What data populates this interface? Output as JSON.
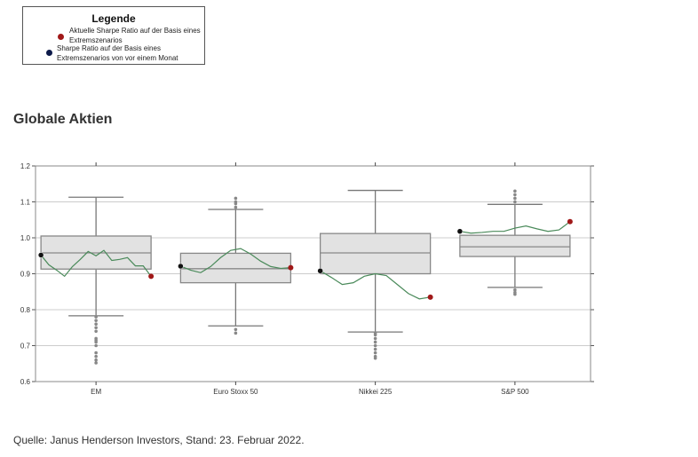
{
  "legend": {
    "title": "Legende",
    "items": [
      {
        "label": "Aktuelle Sharpe Ratio auf der Basis eines Extremszenarios",
        "color": "#a01818"
      },
      {
        "label": "Sharpe Ratio auf der Basis eines Extremszenarios von vor einem Monat",
        "color": "#0d1a4a"
      }
    ]
  },
  "title": "Globale Aktien",
  "source": "Quelle: Janus Henderson Investors, Stand: 23. Februar 2022.",
  "chart_data": {
    "type": "box",
    "ylim": [
      0.6,
      1.2
    ],
    "yticks": [
      "0.6",
      "0.7",
      "0.8",
      "0.9",
      "1.0",
      "1.1",
      "1.2"
    ],
    "grid": true,
    "categories": [
      "EM",
      "Euro Stoxx 50",
      "Nikkei 225",
      "S&P 500"
    ],
    "boxes": [
      {
        "name": "EM",
        "whislo": 0.783,
        "q1": 0.913,
        "med": 0.958,
        "q3": 1.005,
        "whishi": 1.113,
        "outliers": [
          0.78,
          0.77,
          0.76,
          0.75,
          0.74,
          0.72,
          0.715,
          0.71,
          0.7,
          0.68,
          0.67,
          0.66,
          0.652
        ],
        "current": 0.893,
        "previous": 0.952,
        "path": [
          0.952,
          0.925,
          0.91,
          0.893,
          0.92,
          0.94,
          0.962,
          0.95,
          0.965,
          0.937,
          0.94,
          0.945,
          0.922,
          0.922,
          0.893
        ]
      },
      {
        "name": "Euro Stoxx 50",
        "whislo": 0.755,
        "q1": 0.875,
        "med": 0.914,
        "q3": 0.957,
        "whishi": 1.079,
        "outliers": [
          0.745,
          0.735,
          1.085,
          1.095,
          1.1,
          1.11
        ],
        "current": 0.917,
        "previous": 0.921,
        "path": [
          0.921,
          0.91,
          0.903,
          0.92,
          0.945,
          0.965,
          0.97,
          0.955,
          0.935,
          0.92,
          0.915,
          0.917
        ]
      },
      {
        "name": "Nikkei 225",
        "whislo": 0.738,
        "q1": 0.9,
        "med": 0.958,
        "q3": 1.012,
        "whishi": 1.132,
        "outliers": [
          0.735,
          0.73,
          0.72,
          0.71,
          0.7,
          0.69,
          0.68,
          0.67,
          0.665
        ],
        "current": 0.835,
        "previous": 0.908,
        "path": [
          0.908,
          0.89,
          0.87,
          0.875,
          0.893,
          0.9,
          0.895,
          0.87,
          0.845,
          0.83,
          0.835
        ]
      },
      {
        "name": "S&P 500",
        "whislo": 0.862,
        "q1": 0.948,
        "med": 0.975,
        "q3": 1.007,
        "whishi": 1.093,
        "outliers": [
          0.855,
          0.848,
          0.843,
          1.1,
          1.11,
          1.12,
          1.13
        ],
        "current": 1.045,
        "previous": 1.018,
        "path": [
          1.018,
          1.013,
          1.015,
          1.018,
          1.018,
          1.027,
          1.033,
          1.025,
          1.018,
          1.022,
          1.045
        ]
      }
    ],
    "colors": {
      "box": "#e2e2e2",
      "line": "#4a8a5a",
      "current": "#a01818",
      "previous": "#111111"
    }
  }
}
